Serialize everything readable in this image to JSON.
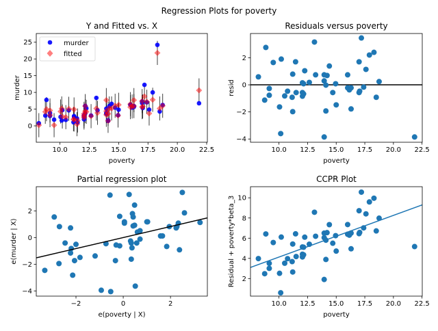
{
  "suptitle": "Regression Plots for poverty",
  "colors": {
    "murder": "#0000ff",
    "fitted": "#ff0000",
    "scatter": "#1f77b4",
    "line_black": "#000000",
    "line_blue": "#1f77b4"
  },
  "chart_data": [
    {
      "type": "scatter",
      "title": "Y and Fitted vs. X",
      "xlabel": "poverty",
      "ylabel": "murder",
      "xlim": [
        7.98,
        22.56
      ],
      "ylim": [
        -4.9,
        27.6
      ],
      "xticks": [
        10.0,
        12.5,
        15.0,
        17.5,
        20.0,
        22.5
      ],
      "xtick_labels": [
        "10.0",
        "12.5",
        "15.0",
        "17.5",
        "20.0",
        "22.5"
      ],
      "yticks": [
        0,
        5,
        10,
        15,
        20,
        25
      ],
      "ytick_labels": [
        "0",
        "5",
        "10",
        "15",
        "20",
        "25"
      ],
      "legend": {
        "placement": "upper-left",
        "entries": [
          "murder",
          "fitted"
        ]
      },
      "ci_halfwidth": 3.6,
      "x": [
        8.2,
        8.85,
        9.5,
        10.2,
        8.75,
        9.15,
        9.15,
        10.05,
        10.15,
        10.5,
        10.75,
        11.15,
        11.2,
        11.2,
        11.45,
        11.5,
        12.05,
        12.05,
        12.05,
        12.15,
        12.15,
        12.25,
        12.65,
        13.1,
        13.2,
        13.95,
        13.95,
        13.95,
        14.1,
        14.1,
        14.2,
        14.4,
        14.7,
        14.95,
        15.0,
        16.0,
        16.0,
        16.15,
        16.3,
        16.3,
        17.0,
        17.0,
        17.05,
        17.2,
        17.4,
        17.6,
        17.9,
        18.3,
        18.5,
        18.75,
        21.85
      ],
      "series": [
        {
          "name": "murder",
          "values": [
            0.79,
            7.76,
            1.85,
            4.7,
            3.07,
            2.93,
            3.83,
            2.67,
            1.6,
            1.78,
            4.63,
            1.08,
            2.69,
            2.92,
            2.2,
            1.03,
            3.15,
            1.93,
            2.76,
            3.73,
            5.98,
            5.24,
            3.08,
            8.36,
            4.64,
            5.14,
            3.59,
            3.85,
            1.67,
            1.48,
            5.89,
            6.59,
            5.43,
            3.18,
            4.82,
            6.34,
            6.28,
            5.43,
            5.68,
            5.92,
            7.3,
            6.83,
            5.33,
            12.26,
            7.03,
            4.84,
            10.0,
            24.2,
            4.28,
            6.24,
            6.75
          ]
        },
        {
          "name": "fitted",
          "values": [
            0.2,
            5.0,
            0.2,
            2.8,
            4.2,
            3.2,
            4.6,
            4.3,
            5.2,
            2.6,
            5.1,
            2.0,
            1.9,
            4.9,
            0.5,
            1.6,
            3.0,
            2.5,
            3.6,
            4.4,
            5.9,
            4.2,
            2.9,
            5.2,
            3.9,
            4.4,
            3.3,
            7.7,
            3.6,
            1.5,
            5.2,
            5.2,
            6.0,
            3.1,
            6.3,
            5.6,
            6.5,
            5.8,
            5.9,
            7.7,
            5.6,
            7.4,
            5.8,
            8.8,
            7.2,
            3.7,
            7.8,
            21.8,
            5.2,
            6.0,
            10.6
          ]
        }
      ]
    },
    {
      "type": "scatter",
      "title": "Residuals versus poverty",
      "xlabel": "poverty",
      "ylabel": "resid",
      "xlim": [
        7.51,
        22.52
      ],
      "ylim": [
        -4.24,
        3.79
      ],
      "xticks": [
        10.0,
        12.5,
        15.0,
        17.5,
        20.0,
        22.5
      ],
      "xtick_labels": [
        "10.0",
        "12.5",
        "15.0",
        "17.5",
        "20.0",
        "22.5"
      ],
      "yticks": [
        -4,
        -2,
        0,
        2
      ],
      "ytick_labels": [
        "−4",
        "−2",
        "0",
        "2"
      ],
      "hline": 0,
      "x": [
        8.2,
        8.85,
        9.5,
        10.2,
        8.75,
        9.15,
        9.15,
        10.05,
        10.15,
        10.5,
        10.75,
        11.15,
        11.2,
        11.2,
        11.45,
        11.5,
        12.05,
        12.05,
        12.05,
        12.15,
        12.15,
        12.25,
        12.65,
        13.1,
        13.2,
        13.95,
        13.95,
        13.95,
        14.1,
        14.1,
        14.2,
        14.4,
        14.7,
        14.95,
        15.0,
        16.0,
        16.0,
        16.15,
        16.3,
        16.3,
        17.0,
        17.0,
        17.05,
        17.2,
        17.4,
        17.6,
        17.9,
        18.3,
        18.5,
        18.75,
        21.85
      ],
      "y": [
        0.59,
        2.76,
        1.65,
        1.9,
        -1.13,
        -0.27,
        -0.77,
        -1.63,
        -3.6,
        -0.82,
        -0.47,
        -0.92,
        0.79,
        -1.98,
        1.7,
        -0.57,
        0.15,
        -0.57,
        -0.84,
        -0.67,
        0.08,
        1.04,
        0.18,
        3.16,
        0.74,
        0.74,
        0.29,
        -3.85,
        -1.93,
        -0.02,
        0.69,
        1.39,
        -0.57,
        0.08,
        -1.48,
        0.74,
        -0.22,
        -0.37,
        -0.22,
        -1.78,
        1.7,
        -0.57,
        -0.47,
        3.46,
        -0.17,
        1.14,
        2.2,
        2.4,
        -0.92,
        0.24,
        -3.85
      ]
    },
    {
      "type": "scatter",
      "title": "Partial regression plot",
      "xlabel": "e(poverty | X)",
      "ylabel": "e(murder | X)",
      "xlim": [
        -3.68,
        3.56
      ],
      "ylim": [
        -4.39,
        3.81
      ],
      "xticks": [
        -2,
        0,
        2
      ],
      "xtick_labels": [
        "−2",
        "0",
        "2"
      ],
      "yticks": [
        -4,
        -2,
        0,
        2
      ],
      "ytick_labels": [
        "−4",
        "−2",
        "0",
        "2"
      ],
      "fit_line": {
        "slope": 0.413,
        "intercept": 0
      },
      "x": [
        -3.32,
        -2.92,
        -2.7,
        -2.72,
        -2.46,
        -2.23,
        -2.2,
        -2.23,
        -2.0,
        -2.14,
        -2.06,
        -1.83,
        -1.19,
        -0.93,
        -0.73,
        -0.56,
        -0.53,
        -0.33,
        -0.3,
        -0.15,
        -0.15,
        0.05,
        0.05,
        0.25,
        0.31,
        0.34,
        0.34,
        0.37,
        0.39,
        0.42,
        0.42,
        0.48,
        0.48,
        0.51,
        0.57,
        0.6,
        0.71,
        0.71,
        1.0,
        1.03,
        1.58,
        1.66,
        1.84,
        1.95,
        2.24,
        2.27,
        2.33,
        2.38,
        2.5,
        2.59,
        3.25
      ],
      "y": [
        -2.46,
        1.54,
        0.82,
        -1.95,
        -0.41,
        0.72,
        -0.82,
        -1.16,
        -0.51,
        -2.82,
        -1.73,
        -1.49,
        -1.38,
        -3.95,
        -0.46,
        3.18,
        -4.05,
        -1.73,
        -0.56,
        -0.62,
        1.59,
        1.18,
        1.08,
        3.23,
        -0.26,
        -0.41,
        -1.62,
        -0.77,
        1.79,
        1.54,
        0.87,
        0.92,
        2.43,
        -3.64,
        -0.41,
        0.41,
        0.51,
        -0.12,
        1.18,
        1.18,
        0.12,
        0.12,
        -0.67,
        0.82,
        0.72,
        0.82,
        1.08,
        -0.92,
        3.38,
        1.85,
        1.13
      ]
    },
    {
      "type": "scatter",
      "title": "CCPR Plot",
      "xlabel": "poverty",
      "ylabel": "Residual + poverty*beta_3",
      "xlim": [
        7.51,
        22.52
      ],
      "ylim": [
        0.26,
        11.1
      ],
      "xticks": [
        10.0,
        12.5,
        15.0,
        17.5,
        20.0,
        22.5
      ],
      "xtick_labels": [
        "10.0",
        "12.5",
        "15.0",
        "17.5",
        "20.0",
        "22.5"
      ],
      "yticks": [
        2,
        4,
        6,
        8,
        10
      ],
      "ytick_labels": [
        "2",
        "4",
        "6",
        "8",
        "10"
      ],
      "fit_line": {
        "slope": 0.413,
        "intercept": 0
      },
      "x": [
        8.2,
        8.85,
        9.5,
        10.2,
        8.75,
        9.15,
        9.15,
        10.05,
        10.15,
        10.5,
        10.75,
        11.15,
        11.2,
        11.2,
        11.45,
        11.5,
        12.05,
        12.05,
        12.05,
        12.15,
        12.15,
        12.25,
        12.65,
        13.1,
        13.2,
        13.95,
        13.95,
        13.95,
        14.1,
        14.1,
        14.2,
        14.4,
        14.7,
        14.95,
        15.0,
        16.0,
        16.0,
        16.15,
        16.3,
        16.3,
        17.0,
        17.0,
        17.05,
        17.2,
        17.4,
        17.6,
        17.9,
        18.3,
        18.5,
        18.75,
        21.85
      ],
      "y": [
        3.98,
        6.42,
        5.57,
        6.11,
        2.48,
        3.51,
        3.01,
        2.52,
        0.59,
        3.52,
        3.97,
        3.68,
        5.42,
        2.65,
        6.43,
        4.18,
        5.13,
        4.41,
        4.14,
        4.35,
        5.1,
        6.1,
        5.4,
        8.57,
        6.19,
        6.5,
        6.05,
        1.91,
        3.89,
        5.8,
        6.55,
        7.34,
        5.5,
        6.25,
        4.72,
        7.35,
        6.39,
        6.3,
        6.51,
        4.95,
        8.72,
        6.45,
        6.57,
        10.56,
        7.02,
        8.41,
        9.59,
        9.96,
        6.72,
        7.98,
        5.17
      ]
    }
  ]
}
